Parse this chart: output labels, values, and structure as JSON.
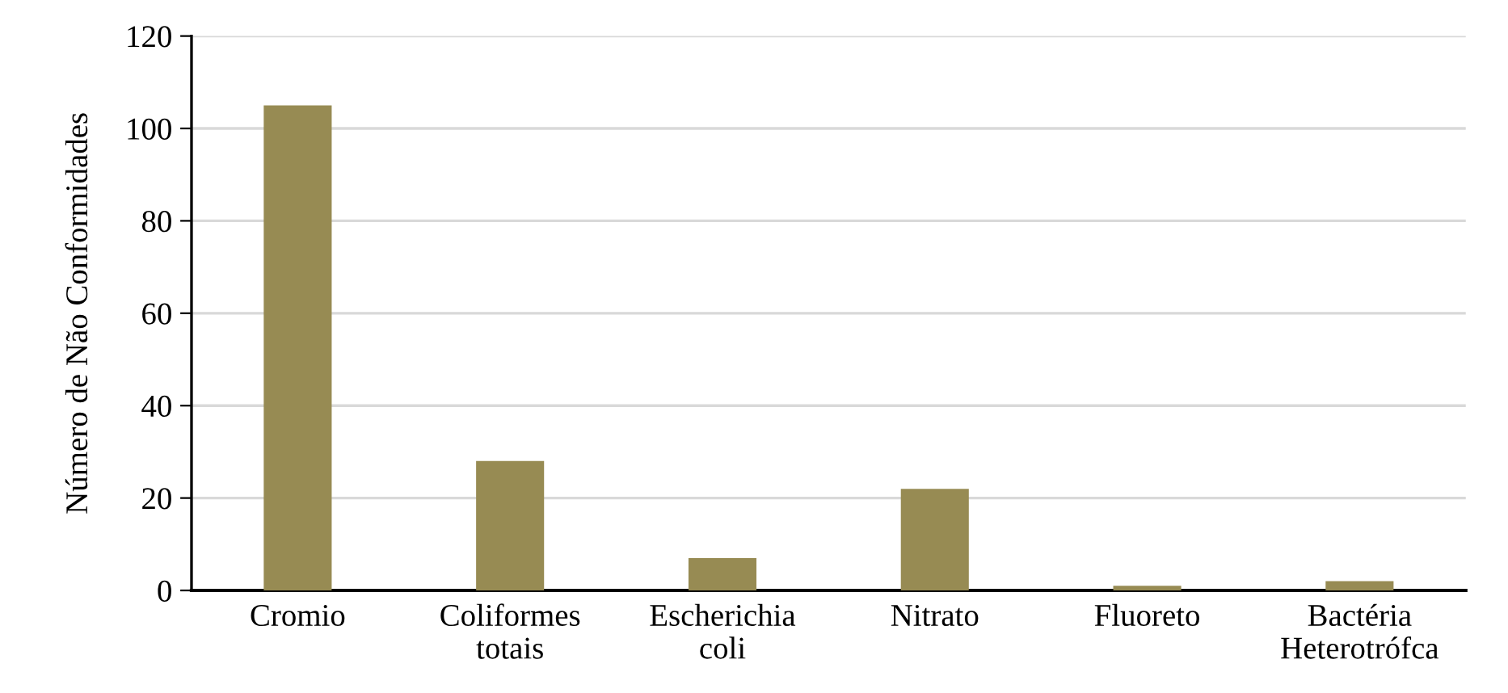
{
  "chart_data": {
    "type": "bar",
    "ylabel": "Número de Não Conformidades",
    "categories": [
      "Cromio",
      "Coliformes\ntotais",
      "Escherichia\ncoli",
      "Nitrato",
      "Fluoreto",
      "Bactéria\nHeterotrófca"
    ],
    "values": [
      105,
      28,
      7,
      22,
      1,
      2
    ],
    "color": "#978b53",
    "ylim": [
      0,
      120
    ],
    "yticks": [
      0,
      20,
      40,
      60,
      80,
      100,
      120
    ],
    "grid": "y"
  }
}
